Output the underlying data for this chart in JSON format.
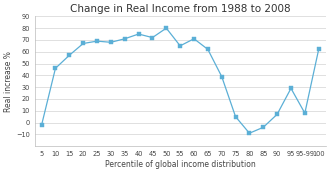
{
  "x_labels": [
    "5",
    "10",
    "15",
    "20",
    "25",
    "30",
    "35",
    "40",
    "45",
    "50",
    "55",
    "60",
    "65",
    "70",
    "75",
    "80",
    "85",
    "90",
    "95",
    "95-99",
    "100"
  ],
  "x_positions": [
    0,
    1,
    2,
    3,
    4,
    5,
    6,
    7,
    8,
    9,
    10,
    11,
    12,
    13,
    14,
    15,
    16,
    17,
    18,
    19,
    20
  ],
  "y_values": [
    -2,
    46,
    57,
    67,
    69,
    68,
    71,
    75,
    72,
    80,
    65,
    71,
    62,
    39,
    5,
    -9,
    -4,
    7,
    29,
    8,
    62
  ],
  "title": "Change in Real Income from 1988 to 2008",
  "xlabel": "Percentile of global income distribution",
  "ylabel": "Real increase %",
  "line_color": "#5bafd6",
  "marker": "s",
  "marker_color": "#5bafd6",
  "ylim": [
    -20,
    90
  ],
  "yticks": [
    -10,
    0,
    10,
    20,
    30,
    40,
    50,
    60,
    70,
    80,
    90
  ],
  "background_color": "#ffffff",
  "grid_color": "#d3d3d3",
  "title_fontsize": 7.5,
  "axis_fontsize": 5.5,
  "tick_fontsize": 4.8
}
